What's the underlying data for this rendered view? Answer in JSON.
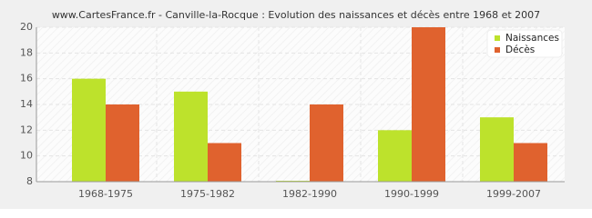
{
  "chart_data": {
    "type": "bar",
    "title": "www.CartesFrance.fr - Canville-la-Rocque : Evolution des naissances et décès entre 1968 et 2007",
    "categories": [
      "1968-1975",
      "1975-1982",
      "1982-1990",
      "1990-1999",
      "1999-2007"
    ],
    "series": [
      {
        "name": "Naissances",
        "color": "#bde22c",
        "values": [
          16,
          15,
          8,
          12,
          13
        ]
      },
      {
        "name": "Décès",
        "color": "#e0622e",
        "values": [
          14,
          11,
          14,
          20,
          11
        ]
      }
    ],
    "ylim": [
      8,
      20
    ],
    "yticks": [
      8,
      10,
      12,
      14,
      16,
      18,
      20
    ],
    "grid": true,
    "legend": "top-right"
  }
}
